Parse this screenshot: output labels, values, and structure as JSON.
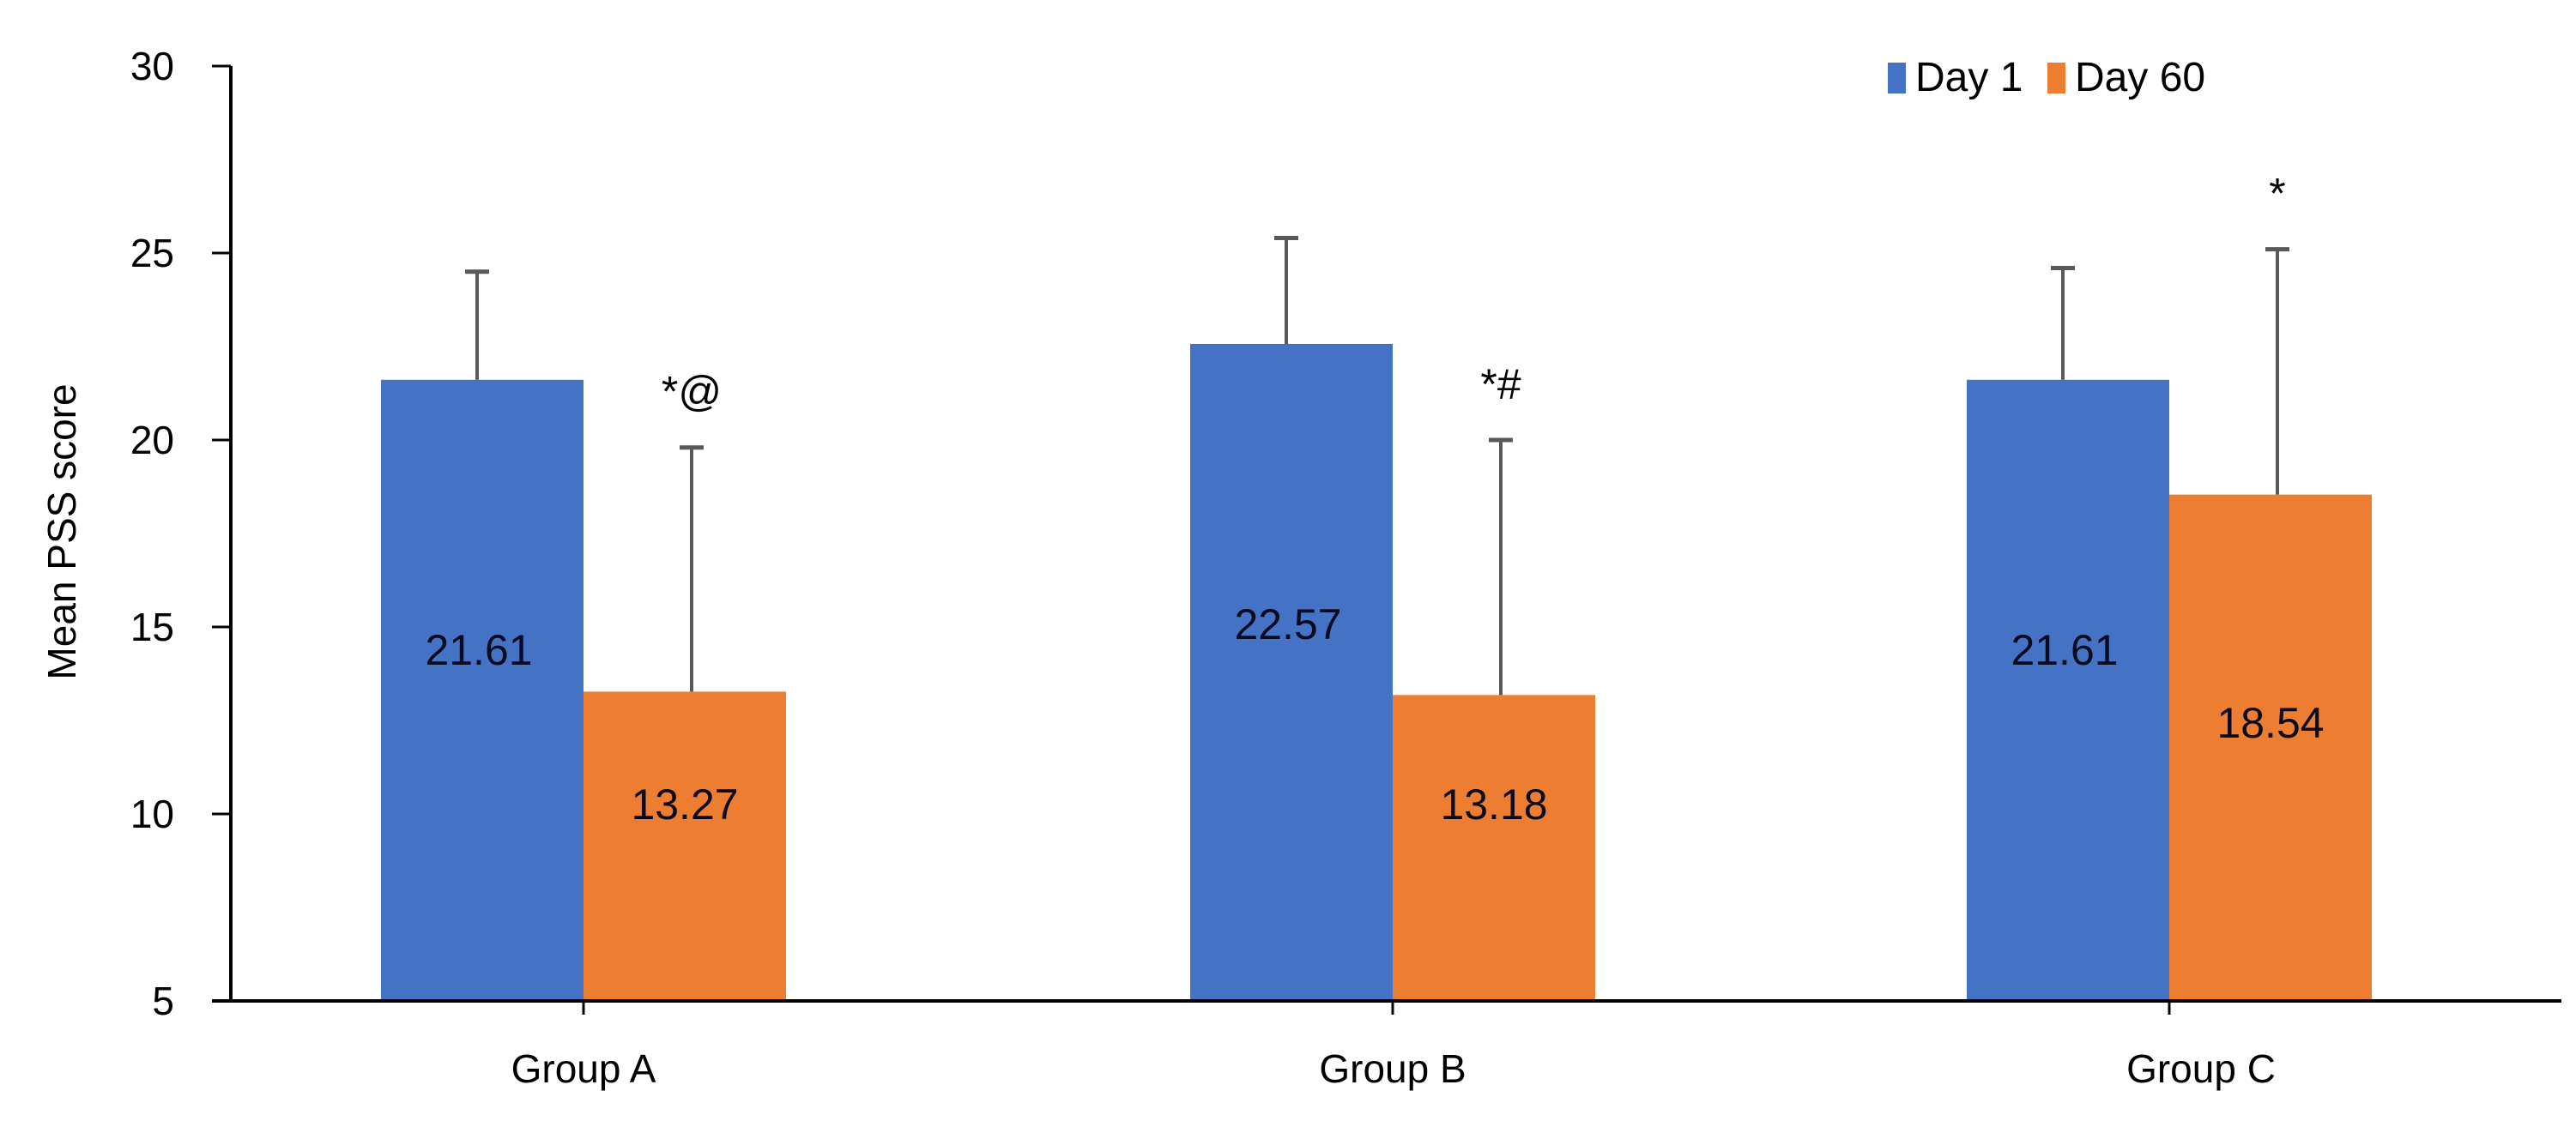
{
  "chart_data": {
    "type": "bar",
    "title": "",
    "xlabel": "",
    "ylabel": "Mean PSS score",
    "ylim": [
      5,
      30
    ],
    "yticks": [
      5,
      10,
      15,
      20,
      25,
      30
    ],
    "grid": false,
    "legend_position": "top-right",
    "categories": [
      "Group A",
      "Group B",
      "Group C"
    ],
    "series": [
      {
        "name": "Day 1",
        "color": "#4472C4",
        "values": [
          21.61,
          22.57,
          21.61
        ],
        "error_upper": [
          24.5,
          25.4,
          24.6
        ],
        "value_labels": [
          "21.61",
          "22.57",
          "21.61"
        ]
      },
      {
        "name": "Day 60",
        "color": "#ED7D31",
        "values": [
          13.27,
          13.18,
          18.54
        ],
        "error_upper": [
          19.8,
          20.0,
          25.1
        ],
        "value_labels": [
          "13.27",
          "13.18",
          "18.54"
        ]
      }
    ],
    "annotations": [
      {
        "category": "Group A",
        "series": "Day 60",
        "text": "*@"
      },
      {
        "category": "Group B",
        "series": "Day 60",
        "text": "*#"
      },
      {
        "category": "Group C",
        "series": "Day 60",
        "text": "*"
      }
    ]
  },
  "legend": {
    "items": [
      {
        "label": "Day 1",
        "color": "#4472C4"
      },
      {
        "label": "Day 60",
        "color": "#ED7D31"
      }
    ]
  },
  "axes": {
    "y_title": "Mean PSS score",
    "y_ticks": [
      "5",
      "10",
      "15",
      "20",
      "25",
      "30"
    ],
    "x_labels": [
      "Group A",
      "Group B",
      "Group C"
    ]
  }
}
